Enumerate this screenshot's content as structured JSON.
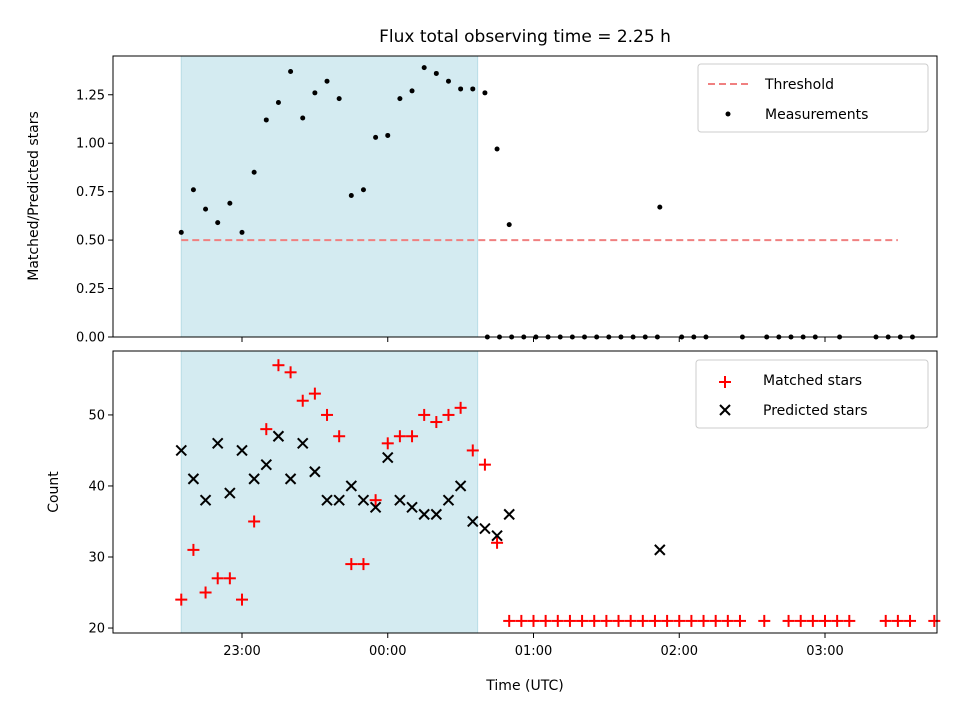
{
  "chart_data": {
    "type": "scatter",
    "title": "Flux total observing time = 2.25 h",
    "xlabel": "Time (UTC)",
    "x_ticks": [
      "23:00",
      "00:00",
      "01:00",
      "02:00",
      "03:00"
    ],
    "observing_window": {
      "start": "22:35",
      "end": "00:37",
      "color": "#d4ebf1"
    },
    "panels": [
      {
        "ylabel": "Matched/Predicted stars",
        "ylim": [
          0,
          1.45
        ],
        "y_ticks": [
          "0.00",
          "0.25",
          "0.50",
          "0.75",
          "1.00",
          "1.25"
        ],
        "legend_position": "top-right",
        "threshold": {
          "name": "Threshold",
          "value": 0.5,
          "x_range": [
            "22:35",
            "03:30"
          ],
          "color": "#f08080"
        },
        "series": [
          {
            "name": "Measurements",
            "marker": "dot",
            "color": "#000000",
            "points": [
              [
                "22:35",
                0.54
              ],
              [
                "22:40",
                0.76
              ],
              [
                "22:45",
                0.66
              ],
              [
                "22:50",
                0.59
              ],
              [
                "22:55",
                0.69
              ],
              [
                "23:00",
                0.54
              ],
              [
                "23:05",
                0.85
              ],
              [
                "23:10",
                1.12
              ],
              [
                "23:15",
                1.21
              ],
              [
                "23:20",
                1.37
              ],
              [
                "23:25",
                1.13
              ],
              [
                "23:30",
                1.26
              ],
              [
                "23:35",
                1.32
              ],
              [
                "23:40",
                1.23
              ],
              [
                "23:45",
                0.73
              ],
              [
                "23:50",
                0.76
              ],
              [
                "23:55",
                1.03
              ],
              [
                "00:00",
                1.04
              ],
              [
                "00:05",
                1.23
              ],
              [
                "00:10",
                1.27
              ],
              [
                "00:15",
                1.39
              ],
              [
                "00:20",
                1.36
              ],
              [
                "00:25",
                1.32
              ],
              [
                "00:30",
                1.28
              ],
              [
                "00:35",
                1.28
              ],
              [
                "00:40",
                1.26
              ],
              [
                "00:45",
                0.97
              ],
              [
                "00:50",
                0.58
              ],
              [
                "00:41",
                0
              ],
              [
                "00:46",
                0
              ],
              [
                "00:51",
                0
              ],
              [
                "00:56",
                0
              ],
              [
                "01:01",
                0
              ],
              [
                "01:06",
                0
              ],
              [
                "01:11",
                0
              ],
              [
                "01:16",
                0
              ],
              [
                "01:21",
                0
              ],
              [
                "01:26",
                0
              ],
              [
                "01:31",
                0
              ],
              [
                "01:36",
                0
              ],
              [
                "01:41",
                0
              ],
              [
                "01:46",
                0
              ],
              [
                "01:51",
                0
              ],
              [
                "01:52",
                0.67
              ],
              [
                "02:01",
                0
              ],
              [
                "02:06",
                0
              ],
              [
                "02:11",
                0
              ],
              [
                "02:26",
                0
              ],
              [
                "02:36",
                0
              ],
              [
                "02:41",
                0
              ],
              [
                "02:46",
                0
              ],
              [
                "02:51",
                0
              ],
              [
                "02:56",
                0
              ],
              [
                "03:06",
                0
              ],
              [
                "03:21",
                0
              ],
              [
                "03:26",
                0
              ],
              [
                "03:31",
                0
              ],
              [
                "03:36",
                0
              ]
            ]
          }
        ]
      },
      {
        "ylabel": "Count",
        "ylim": [
          19.3,
          59
        ],
        "y_ticks": [
          "20",
          "30",
          "40",
          "50"
        ],
        "legend_position": "top-right",
        "series": [
          {
            "name": "Matched stars",
            "marker": "plus",
            "color": "#ff0000",
            "points": [
              [
                "22:35",
                24
              ],
              [
                "22:40",
                31
              ],
              [
                "22:45",
                25
              ],
              [
                "22:50",
                27
              ],
              [
                "22:55",
                27
              ],
              [
                "23:00",
                24
              ],
              [
                "23:05",
                35
              ],
              [
                "23:10",
                48
              ],
              [
                "23:15",
                57
              ],
              [
                "23:20",
                56
              ],
              [
                "23:25",
                52
              ],
              [
                "23:30",
                53
              ],
              [
                "23:35",
                50
              ],
              [
                "23:40",
                47
              ],
              [
                "23:45",
                29
              ],
              [
                "23:50",
                29
              ],
              [
                "23:55",
                38
              ],
              [
                "00:00",
                46
              ],
              [
                "00:05",
                47
              ],
              [
                "00:10",
                47
              ],
              [
                "00:15",
                50
              ],
              [
                "00:20",
                49
              ],
              [
                "00:25",
                50
              ],
              [
                "00:30",
                51
              ],
              [
                "00:35",
                45
              ],
              [
                "00:40",
                43
              ],
              [
                "00:45",
                32
              ],
              [
                "00:50",
                21
              ],
              [
                "00:55",
                21
              ],
              [
                "01:00",
                21
              ],
              [
                "01:05",
                21
              ],
              [
                "01:10",
                21
              ],
              [
                "01:15",
                21
              ],
              [
                "01:20",
                21
              ],
              [
                "01:25",
                21
              ],
              [
                "01:30",
                21
              ],
              [
                "01:35",
                21
              ],
              [
                "01:40",
                21
              ],
              [
                "01:45",
                21
              ],
              [
                "01:50",
                21
              ],
              [
                "01:55",
                21
              ],
              [
                "02:00",
                21
              ],
              [
                "02:05",
                21
              ],
              [
                "02:10",
                21
              ],
              [
                "02:15",
                21
              ],
              [
                "02:20",
                21
              ],
              [
                "02:25",
                21
              ],
              [
                "02:35",
                21
              ],
              [
                "02:45",
                21
              ],
              [
                "02:50",
                21
              ],
              [
                "02:55",
                21
              ],
              [
                "03:00",
                21
              ],
              [
                "03:05",
                21
              ],
              [
                "03:10",
                21
              ],
              [
                "03:25",
                21
              ],
              [
                "03:30",
                21
              ],
              [
                "03:35",
                21
              ],
              [
                "03:45",
                21
              ]
            ]
          },
          {
            "name": "Predicted stars",
            "marker": "x",
            "color": "#000000",
            "points": [
              [
                "22:35",
                45
              ],
              [
                "22:40",
                41
              ],
              [
                "22:45",
                38
              ],
              [
                "22:50",
                46
              ],
              [
                "22:55",
                39
              ],
              [
                "23:00",
                45
              ],
              [
                "23:05",
                41
              ],
              [
                "23:10",
                43
              ],
              [
                "23:15",
                47
              ],
              [
                "23:20",
                41
              ],
              [
                "23:25",
                46
              ],
              [
                "23:30",
                42
              ],
              [
                "23:35",
                38
              ],
              [
                "23:40",
                38
              ],
              [
                "23:45",
                40
              ],
              [
                "23:50",
                38
              ],
              [
                "23:55",
                37
              ],
              [
                "00:00",
                44
              ],
              [
                "00:05",
                38
              ],
              [
                "00:10",
                37
              ],
              [
                "00:15",
                36
              ],
              [
                "00:20",
                36
              ],
              [
                "00:25",
                38
              ],
              [
                "00:30",
                40
              ],
              [
                "00:35",
                35
              ],
              [
                "00:40",
                34
              ],
              [
                "00:45",
                33
              ],
              [
                "00:50",
                36
              ],
              [
                "01:52",
                31
              ]
            ]
          }
        ]
      }
    ]
  }
}
